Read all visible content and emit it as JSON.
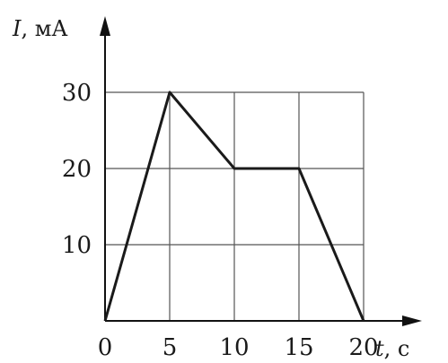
{
  "chart_data": {
    "type": "line",
    "x": [
      0,
      5,
      10,
      15,
      20
    ],
    "series": [
      {
        "values": [
          0,
          30,
          20,
          20,
          0
        ]
      }
    ],
    "title": "",
    "xlabel": {
      "symbol": "t",
      "unit": ", с"
    },
    "ylabel": {
      "symbol": "I",
      "unit": ", мА"
    },
    "xlim": [
      0,
      20
    ],
    "ylim": [
      0,
      30
    ],
    "x_ticks": [
      "0",
      "5",
      "10",
      "15",
      "20"
    ],
    "y_ticks": [
      "10",
      "20",
      "30"
    ],
    "grid": true,
    "colors": {
      "line": "#1a1a1a",
      "grid": "#555555",
      "axis": "#111111"
    }
  }
}
